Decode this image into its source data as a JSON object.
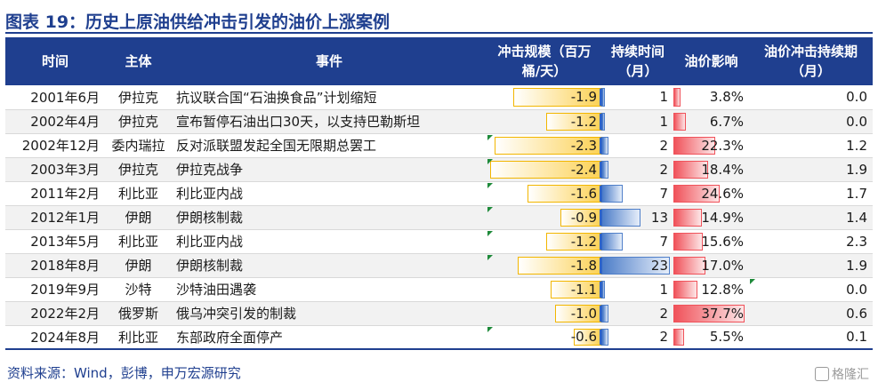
{
  "title": "图表 19：历史上原油供给冲击引发的油价上涨案例",
  "headers": {
    "date": "时间",
    "subject": "主体",
    "event": "事件",
    "shock_line1": "冲击规模（百万",
    "shock_line2": "桶/天）",
    "duration_line1": "持续时间",
    "duration_line2": "（月）",
    "impact": "油价影响",
    "shock_duration_line1": "油价冲击持续期",
    "shock_duration_line2": "（月）"
  },
  "rows": [
    {
      "date": "2001年6月",
      "subject": "伊拉克",
      "event": "抗议联合国“石油换食品”计划缩短",
      "shock": "-1.9",
      "shock_value": -1.9,
      "duration": "1",
      "duration_value": 1,
      "impact": "3.8%",
      "impact_value": 3.8,
      "shock_duration": "0.0",
      "flag_shock": false,
      "flag_impact": false
    },
    {
      "date": "2002年4月",
      "subject": "伊拉克",
      "event": "宣布暂停石油出口30天，以支持巴勒斯坦",
      "shock": "-1.2",
      "shock_value": -1.2,
      "duration": "1",
      "duration_value": 1,
      "impact": "6.7%",
      "impact_value": 6.7,
      "shock_duration": "0.0",
      "flag_shock": false,
      "flag_impact": false
    },
    {
      "date": "2002年12月",
      "subject": "委内瑞拉",
      "event": "反对派联盟发起全国无限期总罢工",
      "shock": "-2.3",
      "shock_value": -2.3,
      "duration": "2",
      "duration_value": 2,
      "impact": "22.3%",
      "impact_value": 22.3,
      "shock_duration": "1.2",
      "flag_shock": true,
      "flag_impact": false
    },
    {
      "date": "2003年3月",
      "subject": "伊拉克",
      "event": "伊拉克战争",
      "shock": "-2.4",
      "shock_value": -2.4,
      "duration": "2",
      "duration_value": 2,
      "impact": "18.4%",
      "impact_value": 18.4,
      "shock_duration": "1.9",
      "flag_shock": true,
      "flag_impact": false
    },
    {
      "date": "2011年2月",
      "subject": "利比亚",
      "event": "利比亚内战",
      "shock": "-1.6",
      "shock_value": -1.6,
      "duration": "7",
      "duration_value": 7,
      "impact": "24.6%",
      "impact_value": 24.6,
      "shock_duration": "1.7",
      "flag_shock": true,
      "flag_impact": false
    },
    {
      "date": "2012年1月",
      "subject": "伊朗",
      "event": "伊朗核制裁",
      "shock": "-0.9",
      "shock_value": -0.9,
      "duration": "13",
      "duration_value": 13,
      "impact": "14.9%",
      "impact_value": 14.9,
      "shock_duration": "1.4",
      "flag_shock": true,
      "flag_impact": false
    },
    {
      "date": "2013年5月",
      "subject": "利比亚",
      "event": "利比亚内战",
      "shock": "-1.2",
      "shock_value": -1.2,
      "duration": "7",
      "duration_value": 7,
      "impact": "15.6%",
      "impact_value": 15.6,
      "shock_duration": "2.3",
      "flag_shock": true,
      "flag_impact": false
    },
    {
      "date": "2018年8月",
      "subject": "伊朗",
      "event": "伊朗核制裁",
      "shock": "-1.8",
      "shock_value": -1.8,
      "duration": "23",
      "duration_value": 23,
      "impact": "17.0%",
      "impact_value": 17.0,
      "shock_duration": "1.9",
      "flag_shock": true,
      "flag_impact": false
    },
    {
      "date": "2019年9月",
      "subject": "沙特",
      "event": "沙特油田遇袭",
      "shock": "-1.1",
      "shock_value": -1.1,
      "duration": "1",
      "duration_value": 1,
      "impact": "12.8%",
      "impact_value": 12.8,
      "shock_duration": "0.0",
      "flag_shock": false,
      "flag_impact": true
    },
    {
      "date": "2022年2月",
      "subject": "俄罗斯",
      "event": "俄乌冲突引发的制裁",
      "shock": "-1.0",
      "shock_value": -1.0,
      "duration": "2",
      "duration_value": 2,
      "impact": "37.7%",
      "impact_value": 37.7,
      "shock_duration": "0.6",
      "flag_shock": false,
      "flag_impact": false
    },
    {
      "date": "2024年8月",
      "subject": "利比亚",
      "event": "东部政府全面停产",
      "shock": "-0.6",
      "shock_value": -0.6,
      "duration": "2",
      "duration_value": 2,
      "impact": "5.5%",
      "impact_value": 5.5,
      "shock_duration": "0.1",
      "flag_shock": true,
      "flag_impact": false
    }
  ],
  "scales": {
    "shock_max_abs": 2.4,
    "duration_max": 23,
    "impact_max": 37.7
  },
  "colors": {
    "header_bg": "#1f3f8f",
    "shock_bar": "#fcd257",
    "duration_bar": "#4f7fc9",
    "impact_bar": "#f0525a"
  },
  "source": "资料来源：Wind，彭博，申万宏源研究",
  "logo_text": "格隆汇"
}
